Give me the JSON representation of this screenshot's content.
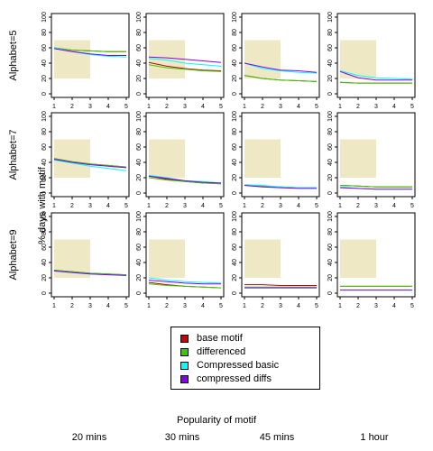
{
  "chart_data": {
    "type": "line",
    "ylabel": "% days with motif",
    "xlabel": "Popularity of motif",
    "x": [
      1,
      2,
      3,
      4,
      5
    ],
    "xlim": [
      1,
      5
    ],
    "ylim": [
      0,
      100
    ],
    "ticks_y": [
      0,
      20,
      40,
      60,
      80,
      100
    ],
    "ticks_x": [
      1,
      2,
      3,
      4,
      5
    ],
    "highlight_region": {
      "x": [
        1,
        3
      ],
      "y": [
        20,
        70
      ]
    },
    "rows": [
      "Alphabet=5",
      "Alphabet=7",
      "Alphabet=9"
    ],
    "columns": [
      "20 mins",
      "30 mins",
      "45 mins",
      "1 hour"
    ],
    "series_names": [
      "base motif",
      "differenced",
      "Compressed basic",
      "compressed diffs"
    ],
    "series_colors": [
      "#cc0000",
      "#33cc00",
      "#00ffff",
      "#8800ee"
    ],
    "panels": [
      [
        {
          "series": [
            [
              60,
              57,
              56,
              55,
              55
            ],
            [
              60,
              57,
              56,
              55,
              55
            ],
            [
              60,
              55,
              51,
              49,
              48
            ],
            [
              59,
              55,
              52,
              50,
              50
            ]
          ]
        },
        {
          "series": [
            [
              41,
              36,
              33,
              31,
              30
            ],
            [
              38,
              34,
              32,
              30,
              29
            ],
            [
              46,
              44,
              40,
              38,
              36
            ],
            [
              48,
              47,
              45,
              43,
              41
            ]
          ]
        },
        {
          "series": [
            [
              24,
              20,
              18,
              17,
              16
            ],
            [
              24,
              20,
              18,
              17,
              16
            ],
            [
              40,
              33,
              30,
              28,
              27
            ],
            [
              40,
              35,
              31,
              30,
              28
            ]
          ]
        },
        {
          "series": [
            [
              15,
              14,
              14,
              14,
              14
            ],
            [
              15,
              14,
              14,
              14,
              14
            ],
            [
              30,
              24,
              21,
              20,
              19
            ],
            [
              29,
              21,
              18,
              18,
              18
            ]
          ]
        }
      ],
      [
        {
          "series": [
            [
              45,
              41,
              38,
              36,
              34
            ],
            [
              45,
              41,
              38,
              36,
              34
            ],
            [
              43,
              39,
              35,
              32,
              29
            ],
            [
              44,
              40,
              37,
              35,
              33
            ]
          ]
        },
        {
          "series": [
            [
              22,
              18,
              15,
              13,
              12
            ],
            [
              20,
              17,
              15,
              13,
              12
            ],
            [
              23,
              20,
              16,
              15,
              13
            ],
            [
              22,
              19,
              16,
              14,
              13
            ]
          ]
        },
        {
          "series": [
            [
              10,
              9,
              8,
              7,
              7
            ],
            [
              10,
              9,
              8,
              7,
              7
            ],
            [
              11,
              10,
              8,
              7,
              7
            ],
            [
              10,
              8,
              7,
              6,
              6
            ]
          ]
        },
        {
          "series": [
            [
              10,
              9,
              8,
              8,
              8
            ],
            [
              10,
              9,
              8,
              8,
              8
            ],
            [
              8,
              6,
              5,
              5,
              5
            ],
            [
              7,
              6,
              5,
              5,
              5
            ]
          ]
        }
      ],
      [
        {
          "series": [
            [
              30,
              28,
              26,
              25,
              24
            ],
            [
              30,
              28,
              26,
              25,
              24
            ],
            [
              29,
              27,
              25,
              24,
              23
            ],
            [
              29,
              27,
              25,
              24,
              23
            ]
          ]
        },
        {
          "series": [
            [
              14,
              11,
              9,
              8,
              7
            ],
            [
              12,
              10,
              9,
              8,
              7
            ],
            [
              20,
              17,
              15,
              14,
              13
            ],
            [
              17,
              15,
              13,
              12,
              12
            ]
          ]
        },
        {
          "series": [
            [
              11,
              11,
              10,
              10,
              10
            ],
            [
              8,
              8,
              8,
              8,
              8
            ],
            [
              7,
              7,
              7,
              7,
              7
            ],
            [
              7,
              7,
              7,
              7,
              7
            ]
          ]
        },
        {
          "series": [
            [
              9,
              9,
              9,
              9,
              9
            ],
            [
              9,
              9,
              9,
              9,
              9
            ],
            [
              4,
              4,
              4,
              4,
              4
            ],
            [
              4,
              4,
              4,
              4,
              4
            ]
          ]
        }
      ]
    ]
  }
}
